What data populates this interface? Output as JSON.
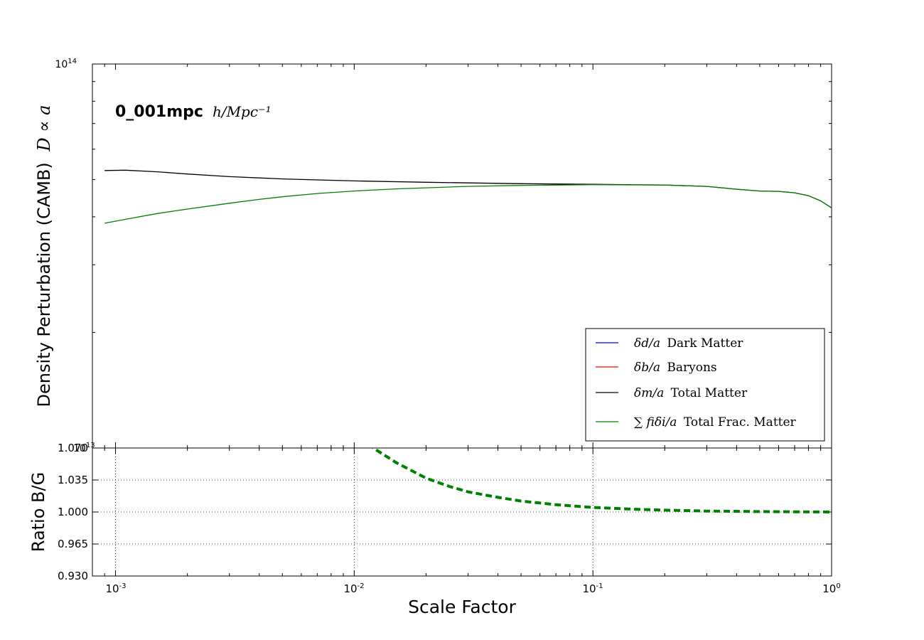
{
  "chart_data": [
    {
      "type": "line",
      "panel": "top",
      "title_bold": "0_001mpc",
      "title_math": "h/Mpc⁻¹",
      "ylabel": "Density Perturbation (CAMB)",
      "ylabel_math": "D ∝ a",
      "xscale": "log",
      "yscale": "log",
      "xlim": [
        0.0008,
        1.0
      ],
      "ytick_label": {
        "base": "10",
        "exp": "14"
      },
      "legend_loc": "lower right",
      "legend": [
        {
          "math": "δd/a",
          "text": "Dark Matter",
          "color": "#0000ff"
        },
        {
          "math": "δb/a",
          "text": "Baryons",
          "color": "#ff0000"
        },
        {
          "math": "δm/a",
          "text": "Total Matter",
          "color": "#000000"
        },
        {
          "math": "∑ fiδi/a",
          "text": "Total Frac. Matter",
          "color": "#008000"
        }
      ],
      "series": [
        {
          "name": "δm/a Total Matter",
          "color": "#000000",
          "x": [
            0.0009,
            0.0011,
            0.0015,
            0.002,
            0.003,
            0.005,
            0.01,
            0.02,
            0.05,
            0.1,
            0.2,
            0.3,
            0.4,
            0.5,
            0.6,
            0.7,
            0.8,
            0.9,
            1.0
          ],
          "y": [
            52800000000000.0,
            52900000000000.0,
            52400000000000.0,
            51700000000000.0,
            50900000000000.0,
            50200000000000.0,
            49600000000000.0,
            49200000000000.0,
            48800000000000.0,
            48600000000000.0,
            48400000000000.0,
            48000000000000.0,
            47200000000000.0,
            46700000000000.0,
            46600000000000.0,
            46200000000000.0,
            45400000000000.0,
            44000000000000.0,
            42200000000000.0
          ]
        },
        {
          "name": "∑ fiδi/a Total Frac. Matter",
          "color": "#008000",
          "x": [
            0.0009,
            0.0012,
            0.0015,
            0.002,
            0.003,
            0.004,
            0.005,
            0.007,
            0.01,
            0.015,
            0.02,
            0.03,
            0.05,
            0.1,
            0.2,
            0.3,
            0.4,
            0.5,
            0.6,
            0.7,
            0.8,
            0.9,
            1.0
          ],
          "y": [
            38500000000000.0,
            39800000000000.0,
            40800000000000.0,
            41900000000000.0,
            43400000000000.0,
            44400000000000.0,
            45100000000000.0,
            46000000000000.0,
            46700000000000.0,
            47300000000000.0,
            47600000000000.0,
            48000000000000.0,
            48300000000000.0,
            48500000000000.0,
            48400000000000.0,
            48000000000000.0,
            47200000000000.0,
            46700000000000.0,
            46600000000000.0,
            46200000000000.0,
            45400000000000.0,
            44000000000000.0,
            42200000000000.0
          ]
        }
      ]
    },
    {
      "type": "line",
      "panel": "bottom",
      "ylabel": "Ratio B/G",
      "xlabel": "Scale Factor",
      "xscale": "log",
      "xlim": [
        0.0008,
        1.0
      ],
      "ylim": [
        0.93,
        1.07
      ],
      "yticks": [
        "0.930",
        "0.965",
        "1.000",
        "1.035",
        "1.070"
      ],
      "xticks": [
        {
          "value": 0.001,
          "base": "10",
          "exp": "-3"
        },
        {
          "value": 0.01,
          "base": "10",
          "exp": "-2"
        },
        {
          "value": 0.1,
          "base": "10",
          "exp": "-1"
        },
        {
          "value": 1.0,
          "base": "10",
          "exp": "0"
        }
      ],
      "overlap_label": {
        "base": "10",
        "exp": "13"
      },
      "grid": true,
      "series": [
        {
          "color": "#008000",
          "style": "dashed",
          "x": [
            0.01,
            0.012,
            0.015,
            0.02,
            0.025,
            0.03,
            0.04,
            0.05,
            0.07,
            0.1,
            0.15,
            0.2,
            0.3,
            0.5,
            0.7,
            1.0
          ],
          "y": [
            1.09,
            1.07,
            1.054,
            1.037,
            1.028,
            1.022,
            1.016,
            1.012,
            1.008,
            1.005,
            1.003,
            1.002,
            1.001,
            1.0005,
            1.0002,
            1.0
          ]
        }
      ]
    }
  ]
}
